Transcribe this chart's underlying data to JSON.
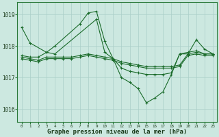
{
  "background_color": "#cce8e0",
  "grid_color": "#aacfc8",
  "line_color": "#1a6b2a",
  "title": "Graphe pression niveau de la mer (hPa)",
  "title_fontsize": 6.5,
  "tick_fontsize": 5.5,
  "xtick_fontsize": 4.2,
  "x_ticks": [
    0,
    1,
    2,
    3,
    4,
    5,
    6,
    7,
    8,
    9,
    10,
    11,
    12,
    13,
    14,
    15,
    16,
    17,
    18,
    19,
    20,
    21,
    22,
    23
  ],
  "ylim": [
    1015.6,
    1019.4
  ],
  "yticks": [
    1016,
    1017,
    1018,
    1019
  ],
  "line1_x": [
    0,
    1,
    3,
    4,
    7,
    8,
    9,
    10,
    11,
    12,
    13,
    14,
    15,
    16,
    17,
    18,
    19,
    20,
    21,
    22,
    23
  ],
  "line1_y": [
    1018.6,
    1018.1,
    1017.8,
    1018.0,
    1018.7,
    1019.05,
    1019.1,
    1018.15,
    1017.6,
    1017.0,
    1016.85,
    1016.65,
    1016.2,
    1016.35,
    1016.55,
    1017.1,
    1017.75,
    1017.75,
    1018.2,
    1017.9,
    1017.75
  ],
  "line2_x": [
    0,
    1,
    2,
    3,
    4,
    9,
    10,
    11,
    12,
    13,
    14,
    15,
    16,
    17,
    18,
    19,
    20,
    21,
    22,
    23
  ],
  "line2_y": [
    1017.7,
    1017.65,
    1017.65,
    1017.8,
    1017.75,
    1018.85,
    1017.8,
    1017.6,
    1017.3,
    1017.2,
    1017.15,
    1017.1,
    1017.1,
    1017.1,
    1017.15,
    1017.75,
    1017.8,
    1017.85,
    1017.75,
    1017.75
  ],
  "line3_x": [
    0,
    1,
    2,
    3,
    4,
    5,
    6,
    7,
    8,
    9,
    10,
    11,
    12,
    13,
    14,
    15,
    16,
    17,
    18,
    19,
    20,
    21,
    22,
    23
  ],
  "line3_y": [
    1017.65,
    1017.6,
    1017.55,
    1017.65,
    1017.65,
    1017.65,
    1017.65,
    1017.7,
    1017.75,
    1017.7,
    1017.65,
    1017.6,
    1017.5,
    1017.45,
    1017.4,
    1017.35,
    1017.35,
    1017.35,
    1017.35,
    1017.4,
    1017.75,
    1017.8,
    1017.75,
    1017.75
  ],
  "line4_x": [
    0,
    1,
    2,
    3,
    4,
    5,
    6,
    7,
    8,
    9,
    10,
    11,
    12,
    13,
    14,
    15,
    16,
    17,
    18,
    19,
    20,
    21,
    22,
    23
  ],
  "line4_y": [
    1017.6,
    1017.55,
    1017.5,
    1017.6,
    1017.6,
    1017.6,
    1017.6,
    1017.65,
    1017.7,
    1017.65,
    1017.6,
    1017.55,
    1017.45,
    1017.4,
    1017.35,
    1017.3,
    1017.3,
    1017.3,
    1017.3,
    1017.35,
    1017.7,
    1017.75,
    1017.7,
    1017.7
  ]
}
